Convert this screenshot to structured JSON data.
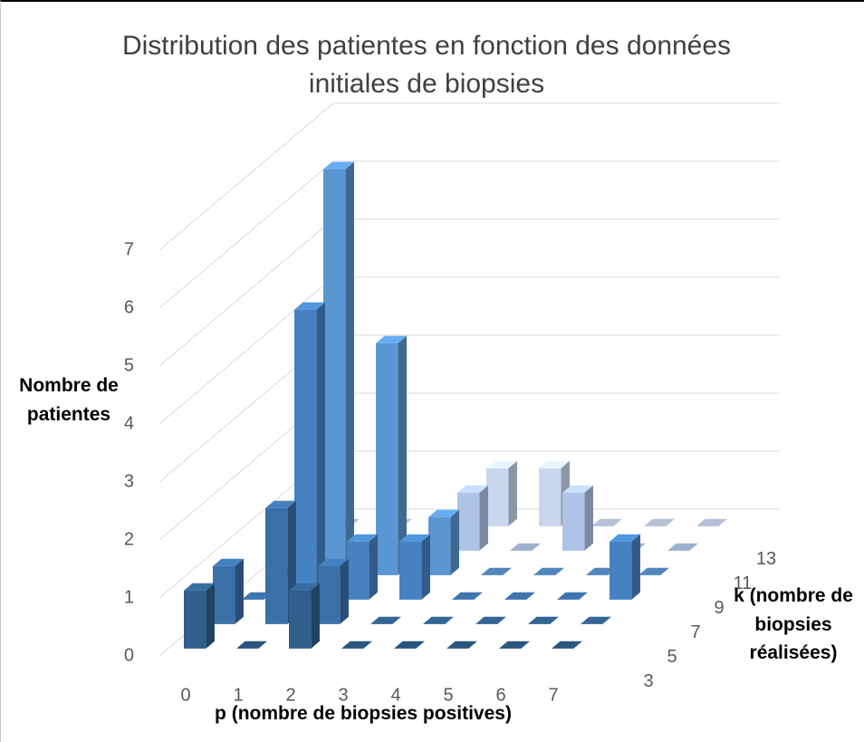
{
  "chart_data": {
    "type": "bar3d",
    "title": "Distribution des patientes en fonction des données initiales de biopsies",
    "y_label": "Nombre de patientes",
    "x_label": "p (nombre de biopsies positives)",
    "z_label": "k (nombre de biopsies réalisées)",
    "categories": [
      "0",
      "1",
      "2",
      "3",
      "4",
      "5",
      "6",
      "7"
    ],
    "series": [
      {
        "name": "3",
        "color": "#2f5f8c",
        "values": [
          1,
          0,
          1,
          0,
          0,
          0,
          0,
          0
        ]
      },
      {
        "name": "5",
        "color": "#3a70a8",
        "values": [
          1,
          2,
          1,
          0,
          0,
          0,
          0,
          0
        ]
      },
      {
        "name": "7",
        "color": "#4682c2",
        "values": [
          0,
          5,
          1,
          1,
          0,
          0,
          0,
          1
        ]
      },
      {
        "name": "9",
        "color": "#5a96d2",
        "values": [
          0,
          7,
          4,
          1,
          0,
          0,
          0,
          0
        ]
      },
      {
        "name": "11",
        "color": "#aec3e6",
        "values": [
          0,
          0,
          0,
          1,
          0,
          1,
          0,
          0
        ]
      },
      {
        "name": "13",
        "color": "#c9d6ee",
        "values": [
          0,
          0,
          0,
          1,
          1,
          0,
          0,
          0
        ]
      }
    ],
    "ylim": [
      0,
      8
    ],
    "yticks": [
      0,
      1,
      2,
      3,
      4,
      5,
      6,
      7
    ],
    "grid": true
  }
}
